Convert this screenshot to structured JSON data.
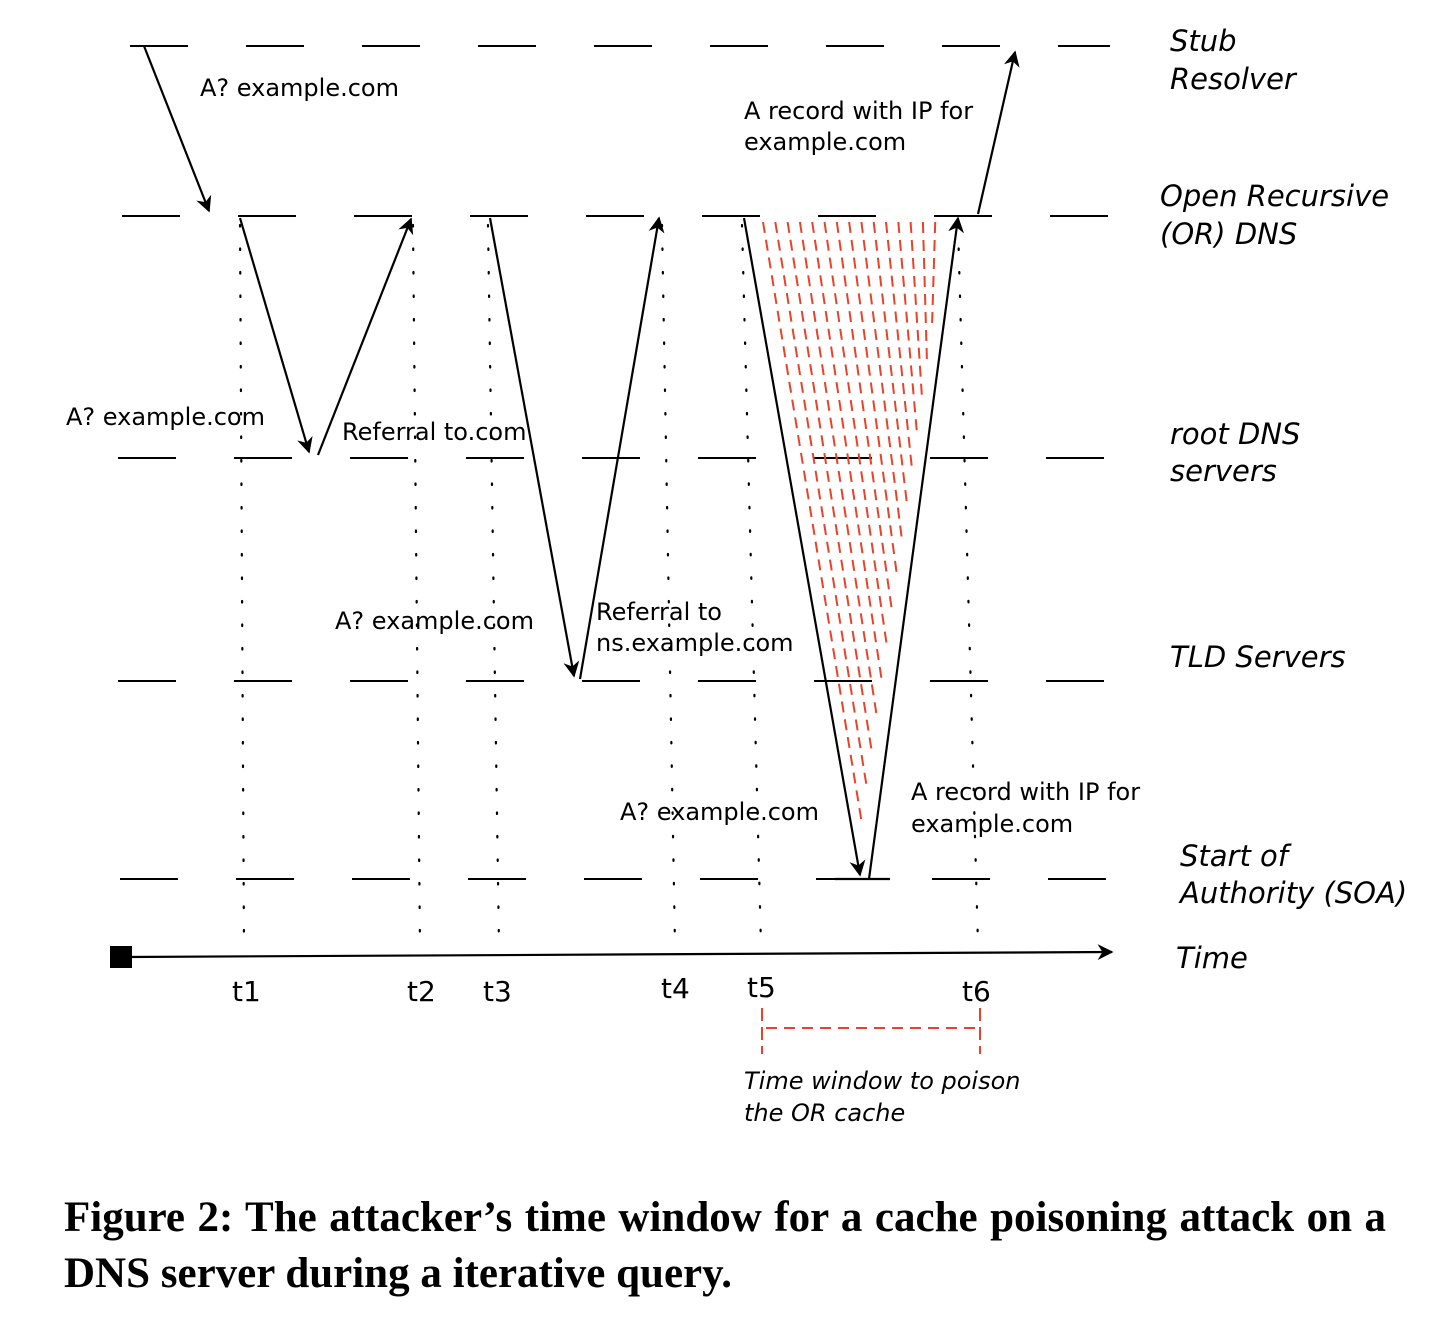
{
  "lanes": {
    "stub": [
      "Stub",
      "Resolver"
    ],
    "or": [
      "Open Recursive",
      "(OR) DNS"
    ],
    "root": [
      "root DNS",
      "servers"
    ],
    "tld": [
      "TLD Servers"
    ],
    "soa": [
      "Start of",
      "Authority (SOA)"
    ],
    "time": "Time"
  },
  "messages": {
    "stub_query": "A? example.com",
    "root_query": "A? example.com",
    "root_referral": "Referral to.com",
    "tld_query": "A? example.com",
    "tld_referral": [
      "Referral to",
      "ns.example.com"
    ],
    "soa_query": "A? example.com",
    "soa_answer": [
      "A record with IP for",
      "example.com"
    ],
    "stub_answer": [
      "A record with IP for",
      "example.com"
    ]
  },
  "time_ticks": [
    "t1",
    "t2",
    "t3",
    "t4",
    "t5",
    "t6"
  ],
  "window_note": [
    "Time window to poison",
    "the OR cache"
  ],
  "colors": {
    "attack": "#e8432a",
    "ink": "#000000"
  },
  "caption": "Figure 2: The attacker’s time window for a cache poisoning attack on a DNS server during a iterative query."
}
